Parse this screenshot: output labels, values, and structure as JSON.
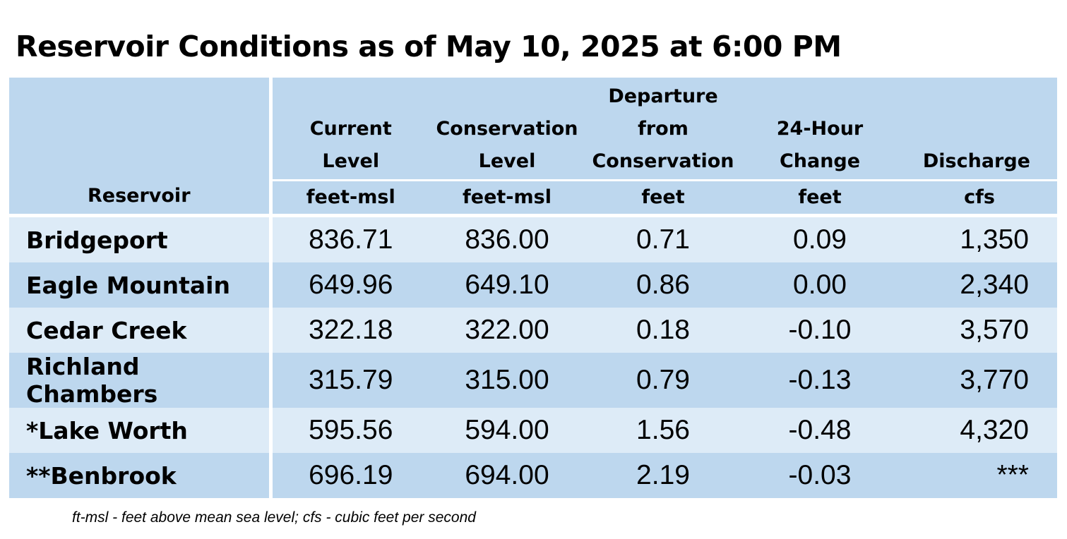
{
  "title": "Reservoir Conditions as of May 10, 2025 at 6:00 PM",
  "table": {
    "headers": {
      "reservoir": "Reservoir",
      "current_level": {
        "line1": "Current",
        "line2": "Level",
        "unit": "feet-msl"
      },
      "conservation_level": {
        "line1": "Conservation",
        "line2": "Level",
        "unit": "feet-msl"
      },
      "departure": {
        "line1": "Departure",
        "line2": "from",
        "line3": "Conservation",
        "unit": "feet"
      },
      "change_24h": {
        "line1": "24-Hour",
        "line2": "Change",
        "unit": "feet"
      },
      "discharge": {
        "line1": "Discharge",
        "unit": "cfs"
      }
    },
    "rows": [
      {
        "name": "Bridgeport",
        "current": "836.71",
        "conservation": "836.00",
        "departure": "0.71",
        "change": "0.09",
        "discharge": "1,350"
      },
      {
        "name": "Eagle Mountain",
        "current": "649.96",
        "conservation": "649.10",
        "departure": "0.86",
        "change": "0.00",
        "discharge": "2,340"
      },
      {
        "name": "Cedar Creek",
        "current": "322.18",
        "conservation": "322.00",
        "departure": "0.18",
        "change": "-0.10",
        "discharge": "3,570"
      },
      {
        "name": "Richland Chambers",
        "current": "315.79",
        "conservation": "315.00",
        "departure": "0.79",
        "change": "-0.13",
        "discharge": "3,770"
      },
      {
        "name": "*Lake Worth",
        "current": "595.56",
        "conservation": "594.00",
        "departure": "1.56",
        "change": "-0.48",
        "discharge": "4,320"
      },
      {
        "name": "**Benbrook",
        "current": "696.19",
        "conservation": "694.00",
        "departure": "2.19",
        "change": "-0.03",
        "discharge": "***"
      }
    ]
  },
  "footnote": "ft-msl - feet above mean sea level; cfs - cubic feet per second",
  "colors": {
    "header_bg": "#bdd7ee",
    "row_light": "#ddebf7",
    "row_dark": "#bdd7ee"
  }
}
